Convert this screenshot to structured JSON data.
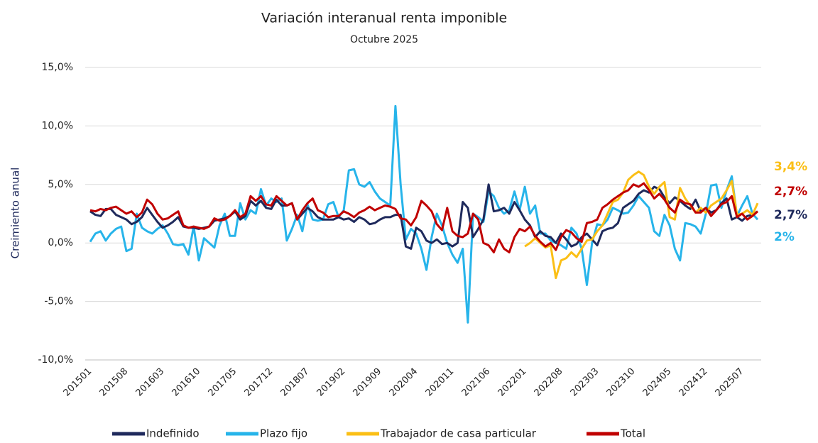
{
  "chart_data": {
    "type": "line",
    "title": "Variación interanual renta imponible",
    "subtitle": "Octubre 2025",
    "y_label": "Creimiento anual",
    "ylim": [
      -10,
      15
    ],
    "yticks": [
      {
        "value": -10,
        "label": "-10,0%"
      },
      {
        "value": -5,
        "label": "-5,0%"
      },
      {
        "value": 0,
        "label": "0,0%"
      },
      {
        "value": 5,
        "label": "5,0%"
      },
      {
        "value": 10,
        "label": "10,0%"
      },
      {
        "value": 15,
        "label": "15,0%"
      }
    ],
    "grid": true,
    "legend": "bottom",
    "categories": [
      "201501",
      null,
      null,
      null,
      null,
      null,
      null,
      "201508",
      null,
      null,
      null,
      null,
      null,
      null,
      "201603",
      null,
      null,
      null,
      null,
      null,
      null,
      "201610",
      null,
      null,
      null,
      null,
      null,
      null,
      "201705",
      null,
      null,
      null,
      null,
      null,
      null,
      "201712",
      null,
      null,
      null,
      null,
      null,
      null,
      "201807",
      null,
      null,
      null,
      null,
      null,
      null,
      "201902",
      null,
      null,
      null,
      null,
      null,
      null,
      "201909",
      null,
      null,
      null,
      null,
      null,
      null,
      "202004",
      null,
      null,
      null,
      null,
      null,
      null,
      "202011",
      null,
      null,
      null,
      null,
      null,
      null,
      "202106",
      null,
      null,
      null,
      null,
      null,
      null,
      "202201",
      null,
      null,
      null,
      null,
      null,
      null,
      "202208",
      null,
      null,
      null,
      null,
      null,
      null,
      "202303",
      null,
      null,
      null,
      null,
      null,
      null,
      "202310",
      null,
      null,
      null,
      null,
      null,
      null,
      "202405",
      null,
      null,
      null,
      null,
      null,
      null,
      "202412",
      null,
      null,
      null,
      null,
      null,
      null,
      "202507",
      null,
      null,
      null
    ],
    "series": [
      {
        "name": "Indefinido",
        "color": "#1f2a5c",
        "values": [
          2.7,
          2.4,
          2.3,
          2.9,
          2.9,
          2.4,
          2.2,
          2.0,
          1.6,
          1.8,
          2.2,
          3.0,
          2.4,
          1.8,
          1.3,
          1.5,
          1.8,
          2.2,
          1.4,
          1.3,
          1.3,
          1.2,
          1.3,
          1.4,
          1.9,
          2.0,
          2.1,
          2.3,
          2.7,
          2.0,
          2.3,
          3.6,
          3.2,
          3.6,
          3.0,
          2.9,
          3.7,
          3.2,
          3.2,
          3.4,
          2.0,
          2.5,
          3.0,
          2.7,
          2.2,
          2.0,
          2.0,
          2.0,
          2.2,
          2.0,
          2.1,
          1.8,
          2.2,
          2.0,
          1.6,
          1.7,
          2.0,
          2.2,
          2.2,
          2.4,
          2.4,
          -0.3,
          -0.5,
          1.3,
          1.0,
          0.2,
          0.0,
          0.3,
          -0.1,
          0.0,
          -0.3,
          0.0,
          3.5,
          3.0,
          0.5,
          1.2,
          2.0,
          5.0,
          2.7,
          2.8,
          3.0,
          2.5,
          3.5,
          2.8,
          2.0,
          1.5,
          0.5,
          1.0,
          0.6,
          0.5,
          0.0,
          0.8,
          0.3,
          -0.3,
          -0.1,
          0.5,
          0.8,
          0.3,
          -0.2,
          1.0,
          1.2,
          1.3,
          1.7,
          3.0,
          3.3,
          3.6,
          4.2,
          4.5,
          4.3,
          4.8,
          4.6,
          3.9,
          3.4,
          3.9,
          3.6,
          3.2,
          2.9,
          3.7,
          2.7,
          3.0,
          2.6,
          2.8,
          3.4,
          3.8,
          2.0,
          2.2,
          1.9,
          2.3,
          2.4,
          2.7
        ],
        "value_labels": [
          null,
          null,
          null,
          null,
          null,
          null,
          null,
          null,
          null,
          null,
          null,
          null,
          null,
          null,
          null,
          null,
          null,
          null,
          null,
          null,
          null,
          null,
          null,
          null,
          null,
          null,
          null,
          null,
          null,
          null,
          null,
          null,
          null,
          null,
          null,
          null,
          null,
          null,
          null,
          null,
          null,
          null,
          null,
          null,
          null,
          null,
          null,
          null,
          null,
          null,
          null,
          null,
          null,
          null,
          null,
          null,
          null,
          null,
          null,
          null,
          null,
          null,
          null,
          null,
          null,
          null,
          null,
          null,
          null,
          null,
          null,
          null,
          null,
          null,
          null,
          null,
          null,
          null,
          null,
          null,
          null,
          null,
          null,
          null,
          null,
          null,
          null,
          null,
          null,
          null,
          null,
          null,
          null,
          null,
          null,
          null,
          null,
          null,
          null,
          null,
          null,
          null,
          null,
          null,
          null,
          null,
          null,
          null,
          null,
          null,
          null,
          null,
          null,
          null,
          null,
          null,
          null,
          null,
          null,
          null,
          null,
          null,
          null,
          null,
          null,
          null,
          null,
          null,
          null,
          "2,7%"
        ]
      },
      {
        "name": "Plazo fijo",
        "color": "#27b4ea",
        "values": [
          0.1,
          0.8,
          1.0,
          0.2,
          0.8,
          1.2,
          1.4,
          -0.7,
          -0.5,
          2.5,
          1.3,
          1.0,
          0.8,
          1.2,
          1.5,
          0.8,
          -0.1,
          -0.2,
          -0.1,
          -1.0,
          1.4,
          -1.5,
          0.4,
          0.0,
          -0.4,
          1.5,
          2.5,
          0.6,
          0.6,
          3.4,
          2.0,
          2.8,
          2.5,
          4.6,
          3.2,
          3.8,
          3.5,
          3.8,
          0.2,
          1.2,
          2.4,
          1.0,
          3.3,
          2.0,
          1.9,
          2.0,
          3.3,
          3.5,
          2.2,
          2.8,
          6.2,
          6.3,
          5.0,
          4.8,
          5.2,
          4.4,
          3.8,
          3.5,
          3.2,
          11.7,
          5.0,
          0.3,
          1.2,
          0.8,
          -0.5,
          -2.3,
          0.5,
          2.5,
          1.5,
          0.0,
          -1.0,
          -1.7,
          -0.5,
          -6.8,
          2.5,
          2.2,
          1.8,
          4.4,
          4.0,
          3.0,
          2.5,
          2.8,
          4.4,
          2.8,
          4.8,
          2.5,
          3.2,
          0.8,
          0.8,
          0.2,
          0.0,
          -0.2,
          -0.5,
          1.3,
          0.8,
          -0.5,
          -3.6,
          0.0,
          1.6,
          1.5,
          2.0,
          3.0,
          2.8,
          2.5,
          2.6,
          3.2,
          4.0,
          3.5,
          3.0,
          1.0,
          0.6,
          2.4,
          1.5,
          -0.5,
          -1.5,
          1.7,
          1.6,
          1.4,
          0.8,
          2.5,
          4.9,
          5.0,
          3.0,
          4.5,
          5.7,
          2.3,
          3.2,
          4.0,
          2.5,
          2.0
        ],
        "value_labels": [
          null,
          null,
          null,
          null,
          null,
          null,
          null,
          null,
          null,
          null,
          null,
          null,
          null,
          null,
          null,
          null,
          null,
          null,
          null,
          null,
          null,
          null,
          null,
          null,
          null,
          null,
          null,
          null,
          null,
          null,
          null,
          null,
          null,
          null,
          null,
          null,
          null,
          null,
          null,
          null,
          null,
          null,
          null,
          null,
          null,
          null,
          null,
          null,
          null,
          null,
          null,
          null,
          null,
          null,
          null,
          null,
          null,
          null,
          null,
          null,
          null,
          null,
          null,
          null,
          null,
          null,
          null,
          null,
          null,
          null,
          null,
          null,
          null,
          null,
          null,
          null,
          null,
          null,
          null,
          null,
          null,
          null,
          null,
          null,
          null,
          null,
          null,
          null,
          null,
          null,
          null,
          null,
          null,
          null,
          null,
          null,
          null,
          null,
          null,
          null,
          null,
          null,
          null,
          null,
          null,
          null,
          null,
          null,
          null,
          null,
          null,
          null,
          null,
          null,
          null,
          null,
          null,
          null,
          null,
          null,
          null,
          null,
          null,
          null,
          null,
          null,
          null,
          null,
          null,
          "2%"
        ]
      },
      {
        "name": "Trabajador de casa particular",
        "color": "#fbbf16",
        "values": [
          null,
          null,
          null,
          null,
          null,
          null,
          null,
          null,
          null,
          null,
          null,
          null,
          null,
          null,
          null,
          null,
          null,
          null,
          null,
          null,
          null,
          null,
          null,
          null,
          null,
          null,
          null,
          null,
          null,
          null,
          null,
          null,
          null,
          null,
          null,
          null,
          null,
          null,
          null,
          null,
          null,
          null,
          null,
          null,
          null,
          null,
          null,
          null,
          null,
          null,
          null,
          null,
          null,
          null,
          null,
          null,
          null,
          null,
          null,
          null,
          null,
          null,
          null,
          null,
          null,
          null,
          null,
          null,
          null,
          null,
          null,
          null,
          null,
          null,
          null,
          null,
          null,
          null,
          null,
          null,
          null,
          null,
          null,
          null,
          -0.3,
          0.0,
          0.4,
          0.0,
          -0.4,
          -0.2,
          -3.0,
          -1.5,
          -1.3,
          -0.8,
          -1.2,
          -0.5,
          0.2,
          0.3,
          1.0,
          1.5,
          2.5,
          3.5,
          3.7,
          4.3,
          5.4,
          5.8,
          6.1,
          5.8,
          4.8,
          4.2,
          4.8,
          5.2,
          2.2,
          2.0,
          4.7,
          3.8,
          3.2,
          2.6,
          3.0,
          2.6,
          3.2,
          3.5,
          3.8,
          4.5,
          5.3,
          2.4,
          2.5,
          2.8,
          2.4,
          3.4
        ],
        "value_labels": [
          null,
          null,
          null,
          null,
          null,
          null,
          null,
          null,
          null,
          null,
          null,
          null,
          null,
          null,
          null,
          null,
          null,
          null,
          null,
          null,
          null,
          null,
          null,
          null,
          null,
          null,
          null,
          null,
          null,
          null,
          null,
          null,
          null,
          null,
          null,
          null,
          null,
          null,
          null,
          null,
          null,
          null,
          null,
          null,
          null,
          null,
          null,
          null,
          null,
          null,
          null,
          null,
          null,
          null,
          null,
          null,
          null,
          null,
          null,
          null,
          null,
          null,
          null,
          null,
          null,
          null,
          null,
          null,
          null,
          null,
          null,
          null,
          null,
          null,
          null,
          null,
          null,
          null,
          null,
          null,
          null,
          null,
          null,
          null,
          null,
          null,
          null,
          null,
          null,
          null,
          null,
          null,
          null,
          null,
          null,
          null,
          null,
          null,
          null,
          null,
          null,
          null,
          null,
          null,
          null,
          null,
          null,
          null,
          null,
          null,
          null,
          null,
          null,
          null,
          null,
          null,
          null,
          null,
          null,
          null,
          null,
          null,
          null,
          null,
          null,
          null,
          null,
          null,
          null,
          "3,4%"
        ]
      },
      {
        "name": "Total",
        "color": "#c00000",
        "values": [
          2.8,
          2.7,
          2.9,
          2.8,
          3.0,
          3.1,
          2.8,
          2.5,
          2.7,
          2.2,
          2.6,
          3.7,
          3.3,
          2.5,
          2.0,
          2.1,
          2.4,
          2.7,
          1.5,
          1.3,
          1.4,
          1.3,
          1.2,
          1.4,
          2.1,
          1.9,
          2.0,
          2.3,
          2.8,
          2.2,
          2.5,
          4.0,
          3.6,
          4.0,
          3.3,
          3.2,
          4.0,
          3.6,
          3.2,
          3.4,
          2.0,
          2.8,
          3.4,
          3.8,
          2.8,
          2.6,
          2.2,
          2.3,
          2.3,
          2.7,
          2.5,
          2.2,
          2.6,
          2.8,
          3.1,
          2.8,
          3.0,
          3.2,
          3.1,
          2.9,
          2.1,
          2.0,
          1.5,
          2.2,
          3.6,
          3.2,
          2.7,
          1.6,
          1.1,
          3.0,
          1.0,
          0.6,
          0.5,
          0.8,
          2.5,
          2.0,
          0.0,
          -0.2,
          -0.8,
          0.3,
          -0.5,
          -0.8,
          0.5,
          1.2,
          1.0,
          1.4,
          0.6,
          0.1,
          -0.3,
          0.0,
          -0.6,
          0.5,
          1.1,
          0.9,
          0.4,
          0.1,
          1.7,
          1.8,
          2.0,
          3.0,
          3.3,
          3.7,
          4.0,
          4.3,
          4.5,
          5.0,
          4.8,
          5.1,
          4.5,
          3.8,
          4.2,
          3.7,
          3.0,
          2.6,
          3.7,
          3.4,
          3.3,
          2.6,
          2.6,
          3.0,
          2.3,
          2.8,
          3.3,
          3.5,
          4.0,
          2.2,
          2.5,
          2.0,
          2.3,
          2.7
        ],
        "value_labels": [
          null,
          null,
          null,
          null,
          null,
          null,
          null,
          null,
          null,
          null,
          null,
          null,
          null,
          null,
          null,
          null,
          null,
          null,
          null,
          null,
          null,
          null,
          null,
          null,
          null,
          null,
          null,
          null,
          null,
          null,
          null,
          null,
          null,
          null,
          null,
          null,
          null,
          null,
          null,
          null,
          null,
          null,
          null,
          null,
          null,
          null,
          null,
          null,
          null,
          null,
          null,
          null,
          null,
          null,
          null,
          null,
          null,
          null,
          null,
          null,
          null,
          null,
          null,
          null,
          null,
          null,
          null,
          null,
          null,
          null,
          null,
          null,
          null,
          null,
          null,
          null,
          null,
          null,
          null,
          null,
          null,
          null,
          null,
          null,
          null,
          null,
          null,
          null,
          null,
          null,
          null,
          null,
          null,
          null,
          null,
          null,
          null,
          null,
          null,
          null,
          null,
          null,
          null,
          null,
          null,
          null,
          null,
          null,
          null,
          null,
          null,
          null,
          null,
          null,
          null,
          null,
          null,
          null,
          null,
          null,
          null,
          null,
          null,
          null,
          null,
          null,
          null,
          null,
          null,
          "2,7%"
        ]
      }
    ]
  }
}
